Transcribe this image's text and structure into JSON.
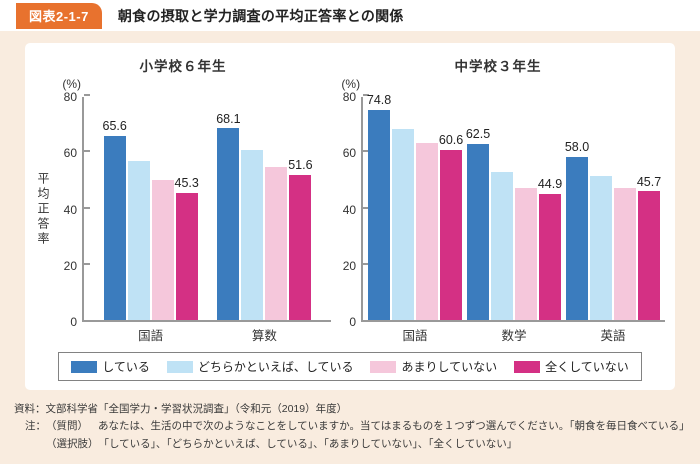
{
  "header": {
    "badge": "図表2-1-7",
    "title": "朝食の摂取と学力調査の平均正答率との関係"
  },
  "colors": {
    "accent_orange": "#e8722e",
    "page_background": "#f9ecdf",
    "panel_background": "#ffffff",
    "axis_gray": "#999999",
    "bar_blue": "#3b7cbe",
    "bar_light_blue": "#bfe2f5",
    "bar_pink": "#f5c7db",
    "bar_magenta": "#d43084"
  },
  "legend": {
    "items": [
      {
        "label": "している",
        "color": "#3b7cbe"
      },
      {
        "label": "どちらかといえば、している",
        "color": "#bfe2f5"
      },
      {
        "label": "あまりしていない",
        "color": "#f5c7db"
      },
      {
        "label": "全くしていない",
        "color": "#d43084"
      }
    ]
  },
  "chart_data": [
    {
      "type": "bar",
      "title": "小学校６年生",
      "unit_label": "(%)",
      "y_axis_label": "平均正答率",
      "categories": [
        "国語",
        "算数"
      ],
      "series": [
        {
          "name": "している",
          "color": "#3b7cbe",
          "labeled": true,
          "values": [
            65.6,
            68.1
          ]
        },
        {
          "name": "どちらかといえば、している",
          "color": "#bfe2f5",
          "labeled": false,
          "values": [
            56.4,
            60.3
          ]
        },
        {
          "name": "あまりしていない",
          "color": "#f5c7db",
          "labeled": false,
          "values": [
            49.7,
            54.5
          ]
        },
        {
          "name": "全くしていない",
          "color": "#d43084",
          "labeled": true,
          "values": [
            45.3,
            51.6
          ]
        }
      ],
      "ylim": [
        0,
        80
      ],
      "yticks": [
        0,
        20,
        40,
        60,
        80
      ],
      "grid": false,
      "legend_position": "bottom"
    },
    {
      "type": "bar",
      "title": "中学校３年生",
      "unit_label": "(%)",
      "y_axis_label": "",
      "categories": [
        "国語",
        "数学",
        "英語"
      ],
      "series": [
        {
          "name": "している",
          "color": "#3b7cbe",
          "labeled": true,
          "values": [
            74.8,
            62.5,
            58.0
          ]
        },
        {
          "name": "どちらかといえば、している",
          "color": "#bfe2f5",
          "labeled": false,
          "values": [
            68.0,
            52.8,
            51.2
          ]
        },
        {
          "name": "あまりしていない",
          "color": "#f5c7db",
          "labeled": false,
          "values": [
            63.0,
            46.8,
            47.0
          ]
        },
        {
          "name": "全くしていない",
          "color": "#d43084",
          "labeled": true,
          "values": [
            60.6,
            44.9,
            45.7
          ]
        }
      ],
      "ylim": [
        0,
        80
      ],
      "yticks": [
        0,
        20,
        40,
        60,
        80
      ],
      "grid": false,
      "legend_position": "bottom"
    }
  ],
  "notes": {
    "source": "資料：文部科学省「全国学力・学習状況調査」（令和元（2019）年度）",
    "note_label": "注：",
    "question_label": "（質問）",
    "question_text": "あなたは、生活の中で次のようなことをしていますか。当てはまるものを１つずつ選んでください。「朝食を毎日食べている」",
    "options_label": "（選択肢）",
    "options_text": "「している」、「どちらかといえば、している」、「あまりしていない」、「全くしていない」"
  }
}
